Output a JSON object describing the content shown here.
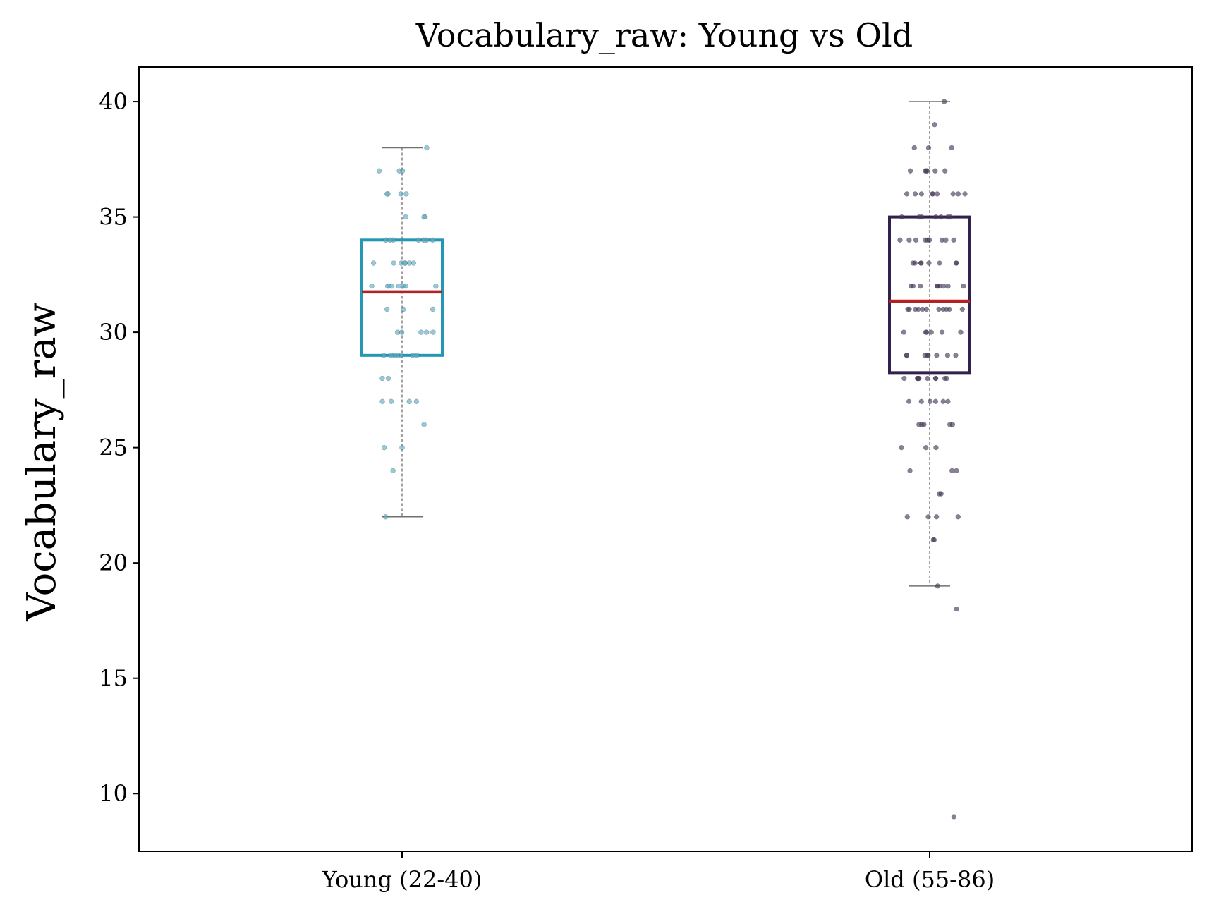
{
  "chart_data": {
    "type": "box",
    "title": "Vocabulary_raw: Young vs Old",
    "xlabel": "",
    "ylabel": "Vocabulary_raw",
    "ylim": [
      7.5,
      41.5
    ],
    "yticks": [
      "10",
      "15",
      "20",
      "25",
      "30",
      "35",
      "40"
    ],
    "categories": [
      "Young (22-40)",
      "Old (55-86)"
    ],
    "grid": false,
    "colors": {
      "young_box": "#2596b4",
      "old_box": "#33214d",
      "median": "#b22222",
      "whisker": "#707070",
      "young_points": "#5aaec7",
      "old_points": "#4a3a5e"
    },
    "boxes": [
      {
        "group": "Young (22-40)",
        "whisker_low": 22,
        "q1": 29,
        "median": 31.75,
        "q3": 34,
        "whisker_high": 38,
        "points": [
          38,
          37,
          37,
          37,
          36,
          36,
          36,
          36,
          35,
          35,
          35,
          34,
          34,
          34,
          34,
          34,
          34,
          34,
          33,
          33,
          33,
          33,
          33,
          33,
          33,
          32,
          32,
          32,
          32,
          32,
          32,
          32,
          32,
          31,
          31,
          31,
          30,
          30,
          30,
          30,
          30,
          29,
          29,
          29,
          29,
          29,
          29,
          29,
          28,
          28,
          27,
          27,
          27,
          27,
          26,
          25,
          25,
          24,
          22
        ]
      },
      {
        "group": "Old (55-86)",
        "whisker_low": 19,
        "q1": 28.25,
        "median": 31.35,
        "q3": 35,
        "whisker_high": 40,
        "points": [
          40,
          39,
          38,
          38,
          38,
          37,
          37,
          37,
          37,
          37,
          37,
          36,
          36,
          36,
          36,
          36,
          36,
          36,
          36,
          36,
          35,
          35,
          35,
          35,
          35,
          35,
          35,
          34,
          34,
          34,
          34,
          34,
          34,
          34,
          34,
          34,
          33,
          33,
          33,
          33,
          33,
          33,
          33,
          33,
          32,
          32,
          32,
          32,
          32,
          32,
          32,
          32,
          32,
          31,
          31,
          31,
          31,
          31,
          31,
          31,
          31,
          31,
          31,
          31,
          30,
          30,
          30,
          30,
          30,
          30,
          29,
          29,
          29,
          29,
          29,
          29,
          29,
          29,
          28,
          28,
          28,
          28,
          28,
          28,
          28,
          28,
          28,
          28,
          27,
          27,
          27,
          27,
          27,
          27,
          26,
          26,
          26,
          26,
          26,
          25,
          25,
          25,
          24,
          24,
          24,
          23,
          23,
          22,
          22,
          22,
          22,
          21,
          21,
          19,
          18,
          9
        ]
      }
    ]
  }
}
